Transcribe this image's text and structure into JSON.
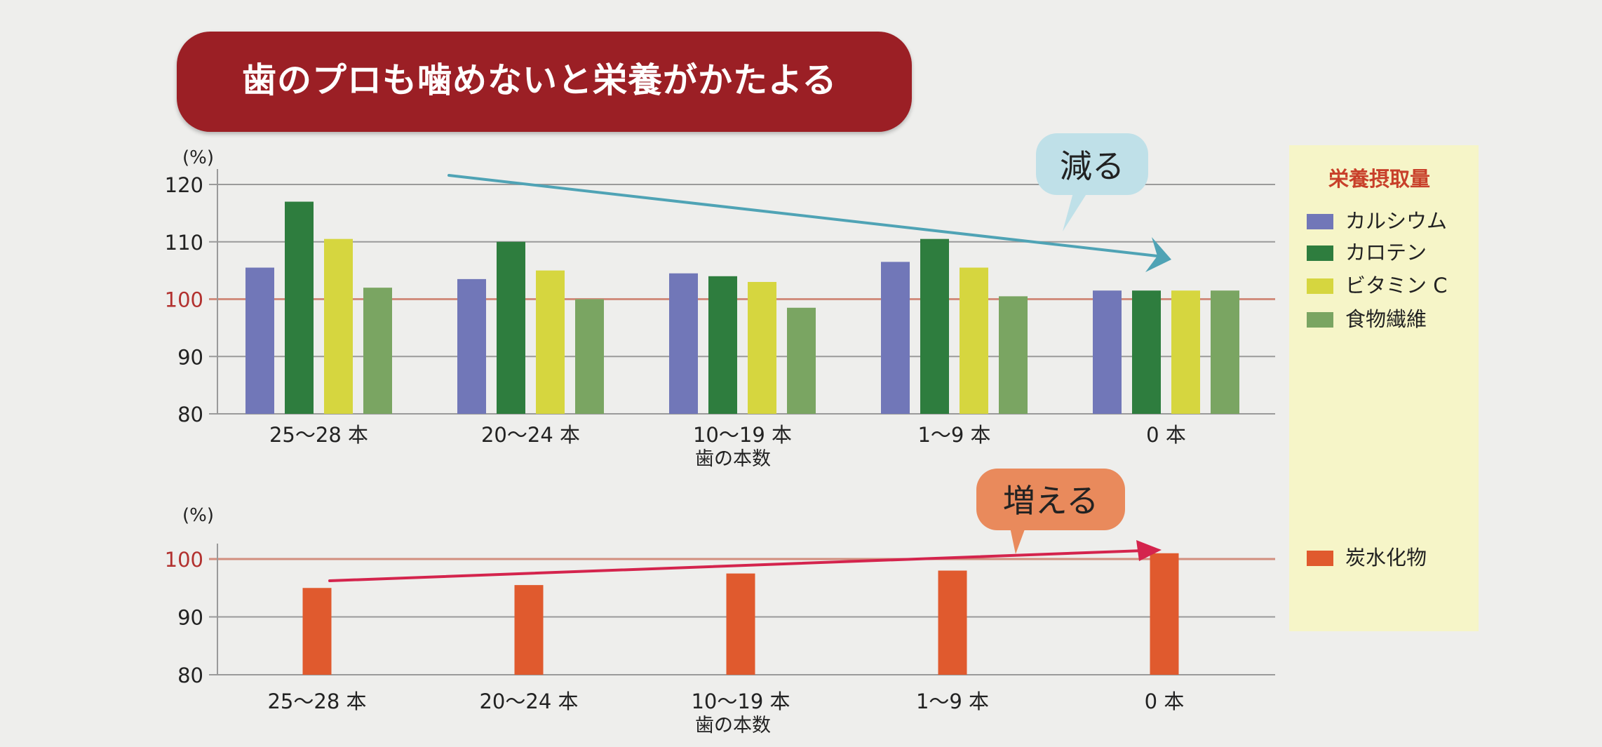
{
  "title": "歯のプロも噛めないと栄養がかたよる",
  "legend": {
    "title": "栄養摂取量",
    "items": [
      {
        "label": "カルシウム",
        "color": "#7177b8"
      },
      {
        "label": "カロテン",
        "color": "#2e7d3e"
      },
      {
        "label": "ビタミン C",
        "color": "#d6d63f"
      },
      {
        "label": "食物繊維",
        "color": "#7aa562"
      },
      {
        "label": "炭水化物",
        "color": "#e05a2e"
      }
    ]
  },
  "annotations": {
    "decrease": "減る",
    "increase": "増える"
  },
  "chart_data": [
    {
      "type": "bar",
      "categories": [
        "25～28 本",
        "20～24 本",
        "10～19 本",
        "1～9 本",
        "0 本"
      ],
      "series": [
        {
          "name": "カルシウム",
          "color": "#7177b8",
          "values": [
            105.5,
            103.5,
            104.5,
            106.5,
            101.5
          ]
        },
        {
          "name": "カロテン",
          "color": "#2e7d3e",
          "values": [
            117,
            110,
            104,
            110.5,
            101.5
          ]
        },
        {
          "name": "ビタミン C",
          "color": "#d6d63f",
          "values": [
            110.5,
            105,
            103,
            105.5,
            101.5
          ]
        },
        {
          "name": "食物繊維",
          "color": "#7aa562",
          "values": [
            102,
            100,
            98.5,
            100.5,
            101.5
          ]
        }
      ],
      "y_unit": "(%)",
      "ylim": [
        80,
        120
      ],
      "yticks": [
        80,
        90,
        100,
        110,
        120
      ],
      "reference_line": 100,
      "xlabel": "歯の本数",
      "ylabel": "",
      "title": "",
      "grid": true,
      "legend": "right"
    },
    {
      "type": "bar",
      "categories": [
        "25～28 本",
        "20～24 本",
        "10～19 本",
        "1～9 本",
        "0 本"
      ],
      "series": [
        {
          "name": "炭水化物",
          "color": "#e05a2e",
          "values": [
            95,
            95.5,
            97.5,
            98,
            101
          ]
        }
      ],
      "y_unit": "(%)",
      "ylim": [
        80,
        100
      ],
      "yticks": [
        80,
        90,
        100
      ],
      "reference_line": 100,
      "xlabel": "歯の本数",
      "ylabel": "",
      "title": "",
      "grid": true,
      "legend": "right"
    }
  ]
}
